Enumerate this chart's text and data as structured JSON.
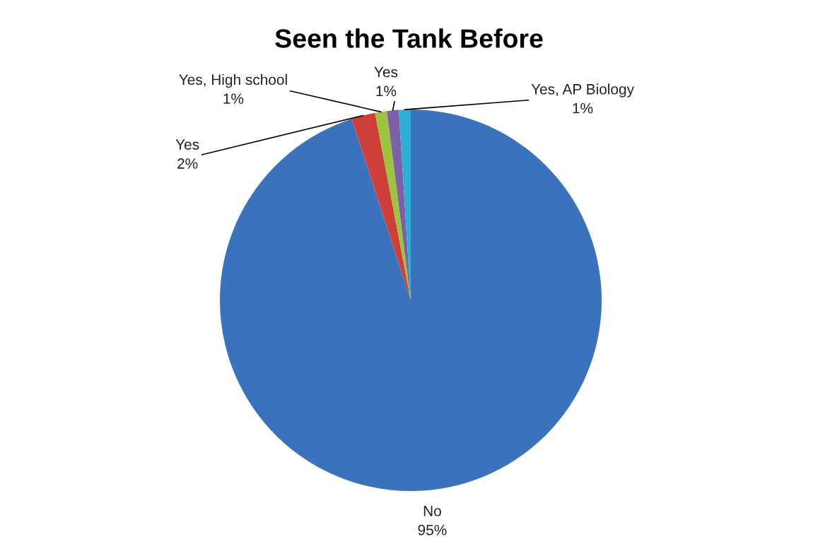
{
  "chart_data": {
    "type": "pie",
    "title": "Seen the Tank Before",
    "categories": [
      "No",
      "Yes",
      "Yes, High school",
      "Yes",
      "Yes, AP Biology"
    ],
    "values": [
      95,
      2,
      1,
      1,
      1
    ],
    "value_labels": [
      "95%",
      "2%",
      "1%",
      "1%",
      "1%"
    ],
    "colors": [
      "#3a72bd",
      "#cf3f3a",
      "#9cc43f",
      "#7e60a6",
      "#2eaed4"
    ]
  }
}
